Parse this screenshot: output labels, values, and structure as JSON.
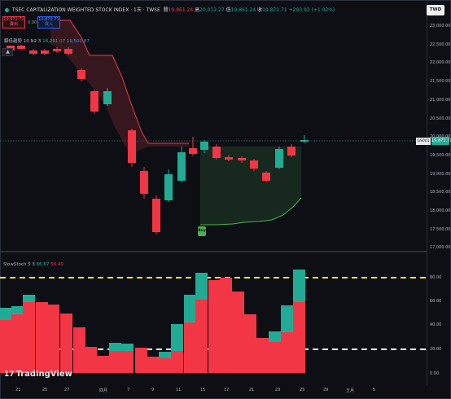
{
  "header": {
    "title": "TSEC CAPITALIZATION WEIGHTED STOCK INDEX · 1天 · TWSE",
    "ohlc": {
      "o_label": "開",
      "o": "19,861.24",
      "h_label": "高",
      "h": "20,012.27",
      "l_label": "低",
      "l": "19,861.24",
      "c_label": "收",
      "c": "19,872.71",
      "chg": "+293.92 (+1.02%)"
    }
  },
  "trade": {
    "sell_price": "19,872.71",
    "sell_label": "賣出",
    "spread": "0.00",
    "buy_price": "19,872.71",
    "buy_label": "買入"
  },
  "indicator": {
    "name": "翻倍趨勢 10 N2 3",
    "v1": "18,291.07",
    "v2": "19,501.87"
  },
  "timeframe": "TWD",
  "price_tag": {
    "symbol": "GS001",
    "value": "19,872.71"
  },
  "price_axis": [
    "23,000.00",
    "22,500.00",
    "22,000.00",
    "21,500.00",
    "21,000.00",
    "20,500.00",
    "20,000.00",
    "19,500.00",
    "19,000.00",
    "18,500.00",
    "18,000.00",
    "17,500.00",
    "17,000.00"
  ],
  "stoch": {
    "name": "SlowStoch 5 3",
    "k": "86.67",
    "d": "59.40"
  },
  "stoch_axis": [
    "80.00",
    "60.00",
    "40.00",
    "20.00",
    "0.00"
  ],
  "x_axis": [
    "21",
    "25",
    "27",
    "四月",
    "7",
    "9",
    "11",
    "15",
    "17",
    "21",
    "23",
    "25",
    "29",
    "五月",
    "5"
  ],
  "signal_label": "Buy",
  "logo": "TradingView",
  "colors": {
    "up": "#22ab94",
    "down": "#f23645",
    "band_down": "#f23645",
    "band_up": "#4caf50",
    "level_hi": "#f2e14c",
    "level_lo": "#ffffff"
  }
}
